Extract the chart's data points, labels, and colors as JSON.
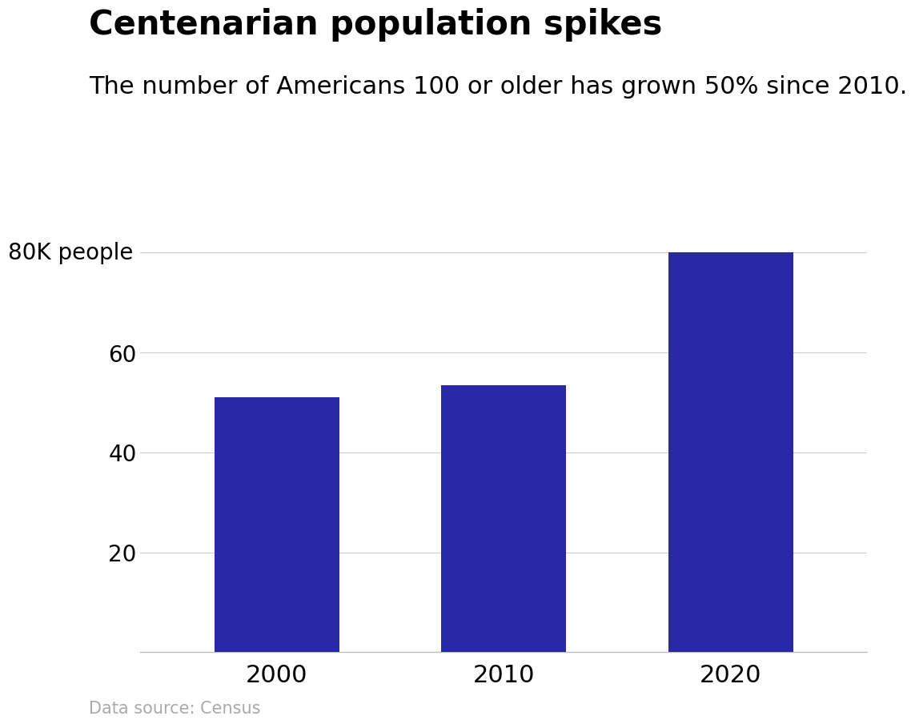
{
  "categories": [
    "2000",
    "2010",
    "2020"
  ],
  "values": [
    51,
    53.5,
    80
  ],
  "bar_color": "#2929a8",
  "title": "Centenarian population spikes",
  "subtitle": "The number of Americans 100 or older has grown 50% since 2010.",
  "ylabel_custom": "80K people",
  "yticks": [
    20,
    40,
    60,
    80
  ],
  "ylim": [
    0,
    90
  ],
  "data_source": "Data source: Census",
  "background_color": "#ffffff",
  "title_fontsize": 30,
  "subtitle_fontsize": 22,
  "tick_fontsize": 20,
  "xtick_fontsize": 22,
  "source_fontsize": 15,
  "bar_width": 0.55
}
